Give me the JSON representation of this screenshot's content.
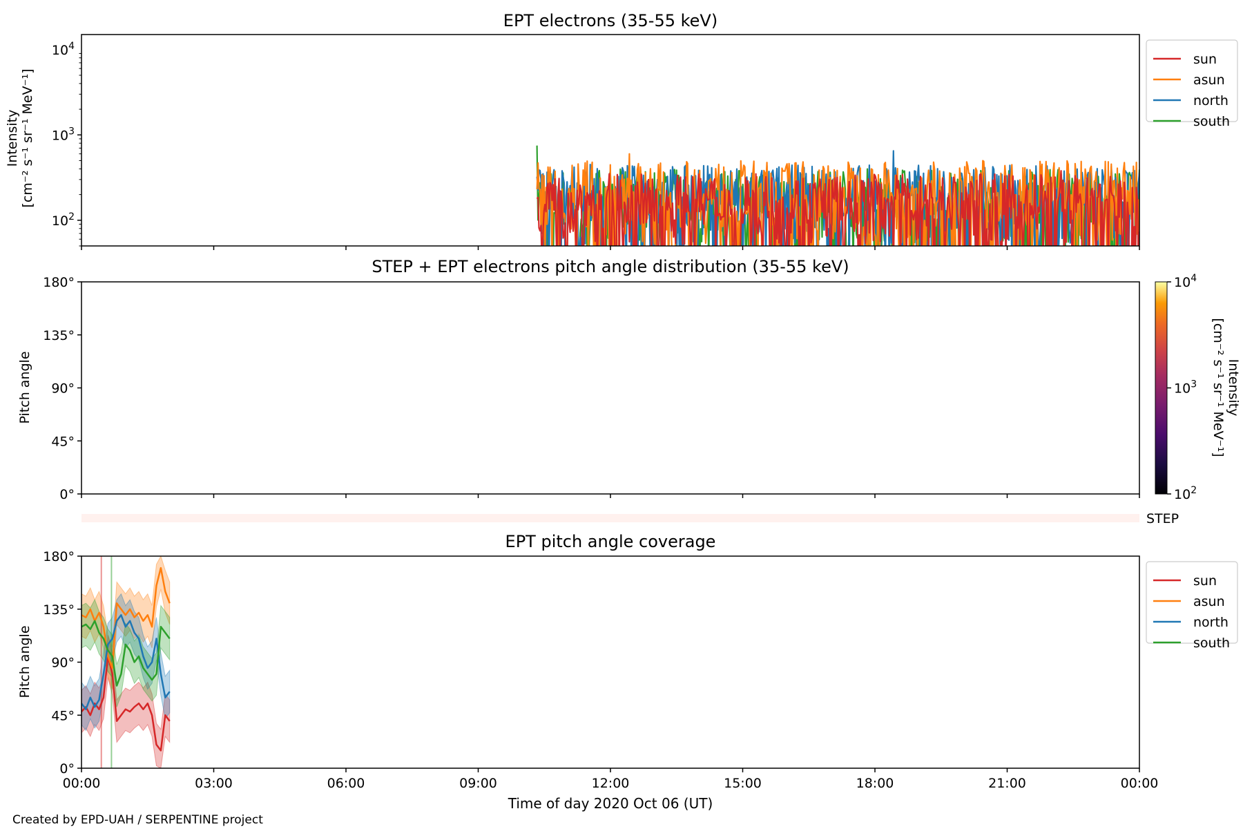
{
  "colors": {
    "sun": "#d62728",
    "asun": "#ff7f0e",
    "north": "#1f77b4",
    "south": "#2ca02c",
    "step_strip": "#fff1ee"
  },
  "credit": "Created by EPD-UAH / SERPENTINE project",
  "chart_data": [
    {
      "type": "line",
      "title": "EPT electrons (35-55 keV)",
      "ylabel_line1": "Intensity",
      "ylabel_line2": "[cm⁻² s⁻¹ sr⁻¹ MeV⁻¹]",
      "xlim": [
        "00:00",
        "24:00"
      ],
      "ylim": [
        50,
        15000
      ],
      "yscale": "log",
      "yticks": [
        {
          "value": 100,
          "base": "10",
          "exp": "2"
        },
        {
          "value": 1000,
          "base": "10",
          "exp": "3"
        },
        {
          "value": 10000,
          "base": "10",
          "exp": "4"
        }
      ],
      "legend": {
        "position": "outside-right-top",
        "entries": [
          "sun",
          "asun",
          "north",
          "south"
        ]
      },
      "data_start": "10:20",
      "data_end": "24:00",
      "series": [
        {
          "name": "sun",
          "typical_range": [
            50,
            350
          ],
          "peak": 380
        },
        {
          "name": "asun",
          "typical_range": [
            50,
            500
          ],
          "peak": 600
        },
        {
          "name": "north",
          "typical_range": [
            50,
            450
          ],
          "peak": 650
        },
        {
          "name": "south",
          "typical_range": [
            50,
            400
          ],
          "peak": 750
        }
      ]
    },
    {
      "type": "heatmap",
      "title": "STEP + EPT electrons pitch angle distribution (35-55 keV)",
      "ylabel": "Pitch angle",
      "ylim": [
        0,
        180
      ],
      "yticks": [
        "0°",
        "45°",
        "90°",
        "135°",
        "180°"
      ],
      "values": [],
      "colorbar": {
        "label_line1": "Intensity",
        "label_line2": "[cm⁻² s⁻¹ sr⁻¹ MeV⁻¹]",
        "scale": "log",
        "range": [
          100,
          10000
        ],
        "colormap": "inferno",
        "ticks": [
          {
            "base": "10",
            "exp": "2"
          },
          {
            "base": "10",
            "exp": "3"
          },
          {
            "base": "10",
            "exp": "4"
          }
        ]
      },
      "step_strip_label": "STEP"
    },
    {
      "type": "line",
      "title": "EPT pitch angle coverage",
      "ylabel": "Pitch angle",
      "xlabel": "Time of day 2020 Oct 06 (UT)",
      "ylim": [
        0,
        180
      ],
      "yticks": [
        "0°",
        "45°",
        "90°",
        "135°",
        "180°"
      ],
      "xticks": [
        "00:00",
        "03:00",
        "06:00",
        "09:00",
        "12:00",
        "15:00",
        "18:00",
        "21:00",
        "00:00"
      ],
      "legend": {
        "position": "outside-right-top",
        "entries": [
          "sun",
          "asun",
          "north",
          "south"
        ]
      },
      "band_halfwidth": 18,
      "x_hours": [
        0.0,
        0.1,
        0.2,
        0.3,
        0.4,
        0.5,
        0.6,
        0.7,
        0.8,
        0.9,
        1.0,
        1.1,
        1.2,
        1.3,
        1.4,
        1.5,
        1.6,
        1.7,
        1.8,
        1.9,
        2.0
      ],
      "series": [
        {
          "name": "sun",
          "values": [
            48,
            52,
            45,
            55,
            50,
            60,
            95,
            80,
            40,
            45,
            50,
            48,
            52,
            55,
            50,
            55,
            45,
            20,
            15,
            45,
            40
          ]
        },
        {
          "name": "asun",
          "values": [
            130,
            128,
            135,
            125,
            132,
            120,
            95,
            85,
            140,
            135,
            130,
            135,
            128,
            132,
            125,
            130,
            120,
            155,
            170,
            150,
            140
          ]
        },
        {
          "name": "north",
          "values": [
            55,
            50,
            60,
            52,
            58,
            80,
            105,
            110,
            125,
            130,
            120,
            125,
            115,
            110,
            95,
            85,
            90,
            110,
            80,
            60,
            65
          ]
        },
        {
          "name": "south",
          "values": [
            120,
            122,
            118,
            125,
            115,
            110,
            100,
            95,
            70,
            80,
            105,
            100,
            90,
            95,
            85,
            80,
            75,
            80,
            120,
            115,
            110
          ]
        }
      ],
      "vertical_spikes": [
        {
          "name": "sun",
          "x": 0.45
        },
        {
          "name": "south",
          "x": 0.68
        }
      ]
    }
  ]
}
